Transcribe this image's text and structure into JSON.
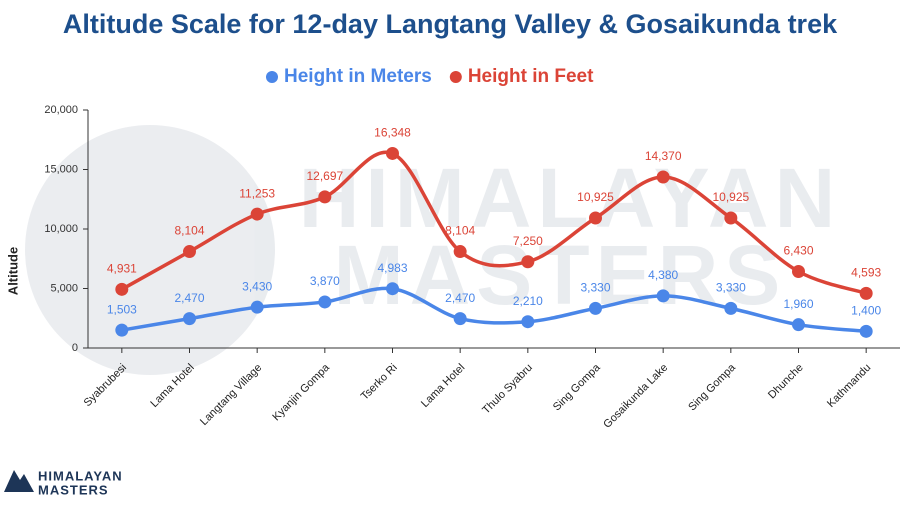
{
  "chart_data": {
    "type": "line",
    "title": "Altitude Scale for 12-day Langtang Valley & Gosaikunda trek",
    "y_label": "Altitude",
    "watermark": [
      "HIMALAYAN",
      "MASTERS"
    ],
    "logo": [
      "HIMALAYAN",
      "MASTERS"
    ],
    "categories": [
      "Syabrubesi",
      "Lama Hotel",
      "Langtang Village",
      "Kyanjin Gompa",
      "Tserko Ri",
      "Lama Hotel",
      "Thulo Syabru",
      "Sing Gompa",
      "Gosaikunda Lake",
      "Sing Gompa",
      "Dhunche",
      "Kathmandu"
    ],
    "series": [
      {
        "name": "Height in Meters",
        "color": "#4a86e8",
        "values": [
          1503,
          2470,
          3430,
          3870,
          4983,
          2470,
          2210,
          3330,
          4380,
          3330,
          1960,
          1400
        ],
        "value_labels": [
          "1,503",
          "2,470",
          "3,430",
          "3,870",
          "4,983",
          "2,470",
          "2,210",
          "3,330",
          "4,380",
          "3,330",
          "1,960",
          "1,400"
        ]
      },
      {
        "name": "Height in Feet",
        "color": "#db4437",
        "values": [
          4931,
          8104,
          11253,
          12697,
          16348,
          8104,
          7250,
          10925,
          14370,
          10925,
          6430,
          4593
        ],
        "value_labels": [
          "4,931",
          "8,104",
          "11,253",
          "12,697",
          "16,348",
          "8,104",
          "7,250",
          "10,925",
          "14,370",
          "10,925",
          "6,430",
          "4,593"
        ]
      }
    ],
    "ylim": [
      0,
      20000
    ],
    "yticks": [
      0,
      {
        "value": 5000,
        "label": "5,000"
      },
      {
        "value": 10000,
        "label": "10,000"
      },
      {
        "value": 15000,
        "label": "15,000"
      },
      {
        "value": 20000,
        "label": "20,000"
      }
    ],
    "legend": "top",
    "grid": false
  }
}
